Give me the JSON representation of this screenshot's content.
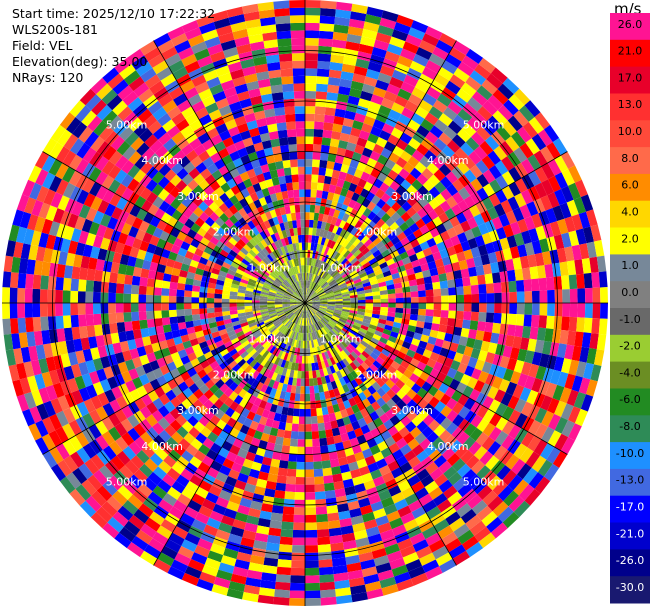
{
  "info": {
    "start_time": "Start time: 2025/12/10 17:22:32",
    "instrument": "WLS200s-181",
    "field": "Field: VEL",
    "elevation": "Elevation(deg): 35.00",
    "nrays": "NRays: 120"
  },
  "colorbar": {
    "unit": "m/s",
    "levels": [
      {
        "label": "26.0",
        "color": "#ff1493",
        "text": "#000000"
      },
      {
        "label": "21.0",
        "color": "#ff0000",
        "text": "#000000"
      },
      {
        "label": "17.0",
        "color": "#e8002a",
        "text": "#000000"
      },
      {
        "label": "13.0",
        "color": "#ff3030",
        "text": "#000000"
      },
      {
        "label": "10.0",
        "color": "#ff4a3a",
        "text": "#000000"
      },
      {
        "label": "8.0",
        "color": "#ff6a4a",
        "text": "#000000"
      },
      {
        "label": "6.0",
        "color": "#ff8c00",
        "text": "#000000"
      },
      {
        "label": "4.0",
        "color": "#ffd700",
        "text": "#000000"
      },
      {
        "label": "2.0",
        "color": "#ffff00",
        "text": "#000000"
      },
      {
        "label": "1.0",
        "color": "#778899",
        "text": "#000000"
      },
      {
        "label": "0.0",
        "color": "#808080",
        "text": "#000000"
      },
      {
        "label": "-1.0",
        "color": "#696969",
        "text": "#000000"
      },
      {
        "label": "-2.0",
        "color": "#9acd32",
        "text": "#000000"
      },
      {
        "label": "-4.0",
        "color": "#6b8e23",
        "text": "#000000"
      },
      {
        "label": "-6.0",
        "color": "#228b22",
        "text": "#000000"
      },
      {
        "label": "-8.0",
        "color": "#2e8b57",
        "text": "#000000"
      },
      {
        "label": "-10.0",
        "color": "#1e90ff",
        "text": "#000000"
      },
      {
        "label": "-13.0",
        "color": "#4169e1",
        "text": "#000000"
      },
      {
        "label": "-17.0",
        "color": "#0000ff",
        "text": "#ffffff"
      },
      {
        "label": "-21.0",
        "color": "#0000cd",
        "text": "#ffffff"
      },
      {
        "label": "-26.0",
        "color": "#00008b",
        "text": "#ffffff"
      },
      {
        "label": "-30.0",
        "color": "#191970",
        "text": "#ffffff"
      }
    ]
  },
  "chart_data": {
    "type": "heatmap",
    "projection": "polar-ppi",
    "field": "VEL",
    "elevation_deg": 35.0,
    "nrays": 120,
    "range_rings_km": [
      1.0,
      2.0,
      3.0,
      4.0,
      5.0
    ],
    "ring_labels": [
      "1.00km",
      "2.00km",
      "3.00km",
      "4.00km",
      "5.00km"
    ],
    "max_range_km": 6.0,
    "range_gates": 40,
    "spoke_interval_deg": 30
  }
}
